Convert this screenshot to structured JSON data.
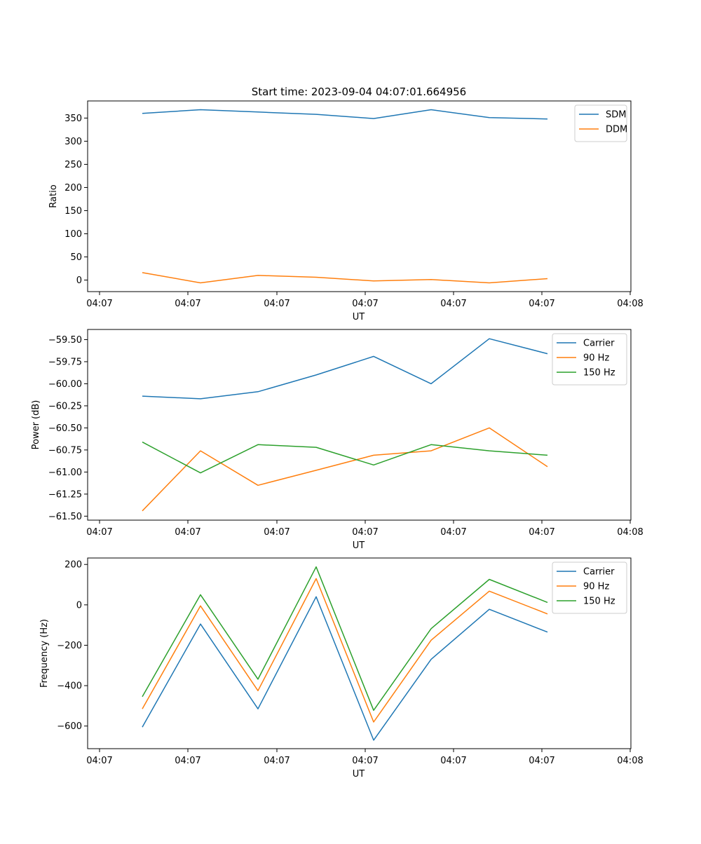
{
  "figure_title": "Start time: 2023-09-04 04:07:01.664956",
  "chart_data": [
    {
      "type": "line",
      "title": "Start time: 2023-09-04 04:07:01.664956",
      "xlabel": "UT",
      "ylabel": "Ratio",
      "x_ticks": [
        "04:07",
        "04:07",
        "04:07",
        "04:07",
        "04:07",
        "04:07",
        "04:08"
      ],
      "ylim": [
        -25,
        387
      ],
      "y_ticks": [
        0,
        50,
        100,
        150,
        200,
        250,
        300,
        350
      ],
      "y_tick_labels": [
        "0",
        "50",
        "100",
        "150",
        "200",
        "250",
        "300",
        "350"
      ],
      "legend_position": "upper-right",
      "series": [
        {
          "name": "SDM",
          "color": "#1f77b4",
          "values": [
            360,
            368,
            363,
            358,
            349,
            368,
            351,
            348
          ]
        },
        {
          "name": "DDM",
          "color": "#ff7f0e",
          "values": [
            16,
            -6,
            10,
            6,
            -2,
            1,
            -6,
            3
          ]
        }
      ]
    },
    {
      "type": "line",
      "title": "",
      "xlabel": "UT",
      "ylabel": "Power (dB)",
      "x_ticks": [
        "04:07",
        "04:07",
        "04:07",
        "04:07",
        "04:07",
        "04:07",
        "04:08"
      ],
      "ylim": [
        -61.545,
        -59.385
      ],
      "y_ticks": [
        -61.5,
        -61.25,
        -61.0,
        -60.75,
        -60.5,
        -60.25,
        -60.0,
        -59.75,
        -59.5
      ],
      "y_tick_labels": [
        "−61.50",
        "−61.25",
        "−61.00",
        "−60.75",
        "−60.50",
        "−60.25",
        "−60.00",
        "−59.75",
        "−59.50"
      ],
      "legend_position": "upper-right",
      "series": [
        {
          "name": "Carrier",
          "color": "#1f77b4",
          "values": [
            -60.14,
            -60.17,
            -60.09,
            -59.9,
            -59.69,
            -60.0,
            -59.49,
            -59.66
          ]
        },
        {
          "name": "90 Hz",
          "color": "#ff7f0e",
          "values": [
            -61.44,
            -60.76,
            -61.15,
            -60.98,
            -60.81,
            -60.76,
            -60.5,
            -60.94
          ]
        },
        {
          "name": "150 Hz",
          "color": "#2ca02c",
          "values": [
            -60.66,
            -61.01,
            -60.69,
            -60.72,
            -60.92,
            -60.69,
            -60.76,
            -60.81
          ]
        }
      ]
    },
    {
      "type": "line",
      "title": "",
      "xlabel": "UT",
      "ylabel": "Frequency (Hz)",
      "x_ticks": [
        "04:07",
        "04:07",
        "04:07",
        "04:07",
        "04:07",
        "04:07",
        "04:08"
      ],
      "ylim": [
        -712,
        232
      ],
      "y_ticks": [
        -600,
        -400,
        -200,
        0,
        200
      ],
      "y_tick_labels": [
        "−600",
        "−400",
        "−200",
        "0",
        "200"
      ],
      "legend_position": "upper-right",
      "series": [
        {
          "name": "Carrier",
          "color": "#1f77b4",
          "values": [
            -605,
            -95,
            -515,
            40,
            -670,
            -270,
            -22,
            -135
          ]
        },
        {
          "name": "90 Hz",
          "color": "#ff7f0e",
          "values": [
            -515,
            -5,
            -425,
            130,
            -580,
            -175,
            68,
            -45
          ]
        },
        {
          "name": "150 Hz",
          "color": "#2ca02c",
          "values": [
            -455,
            50,
            -368,
            188,
            -522,
            -118,
            126,
            12
          ]
        }
      ]
    }
  ]
}
